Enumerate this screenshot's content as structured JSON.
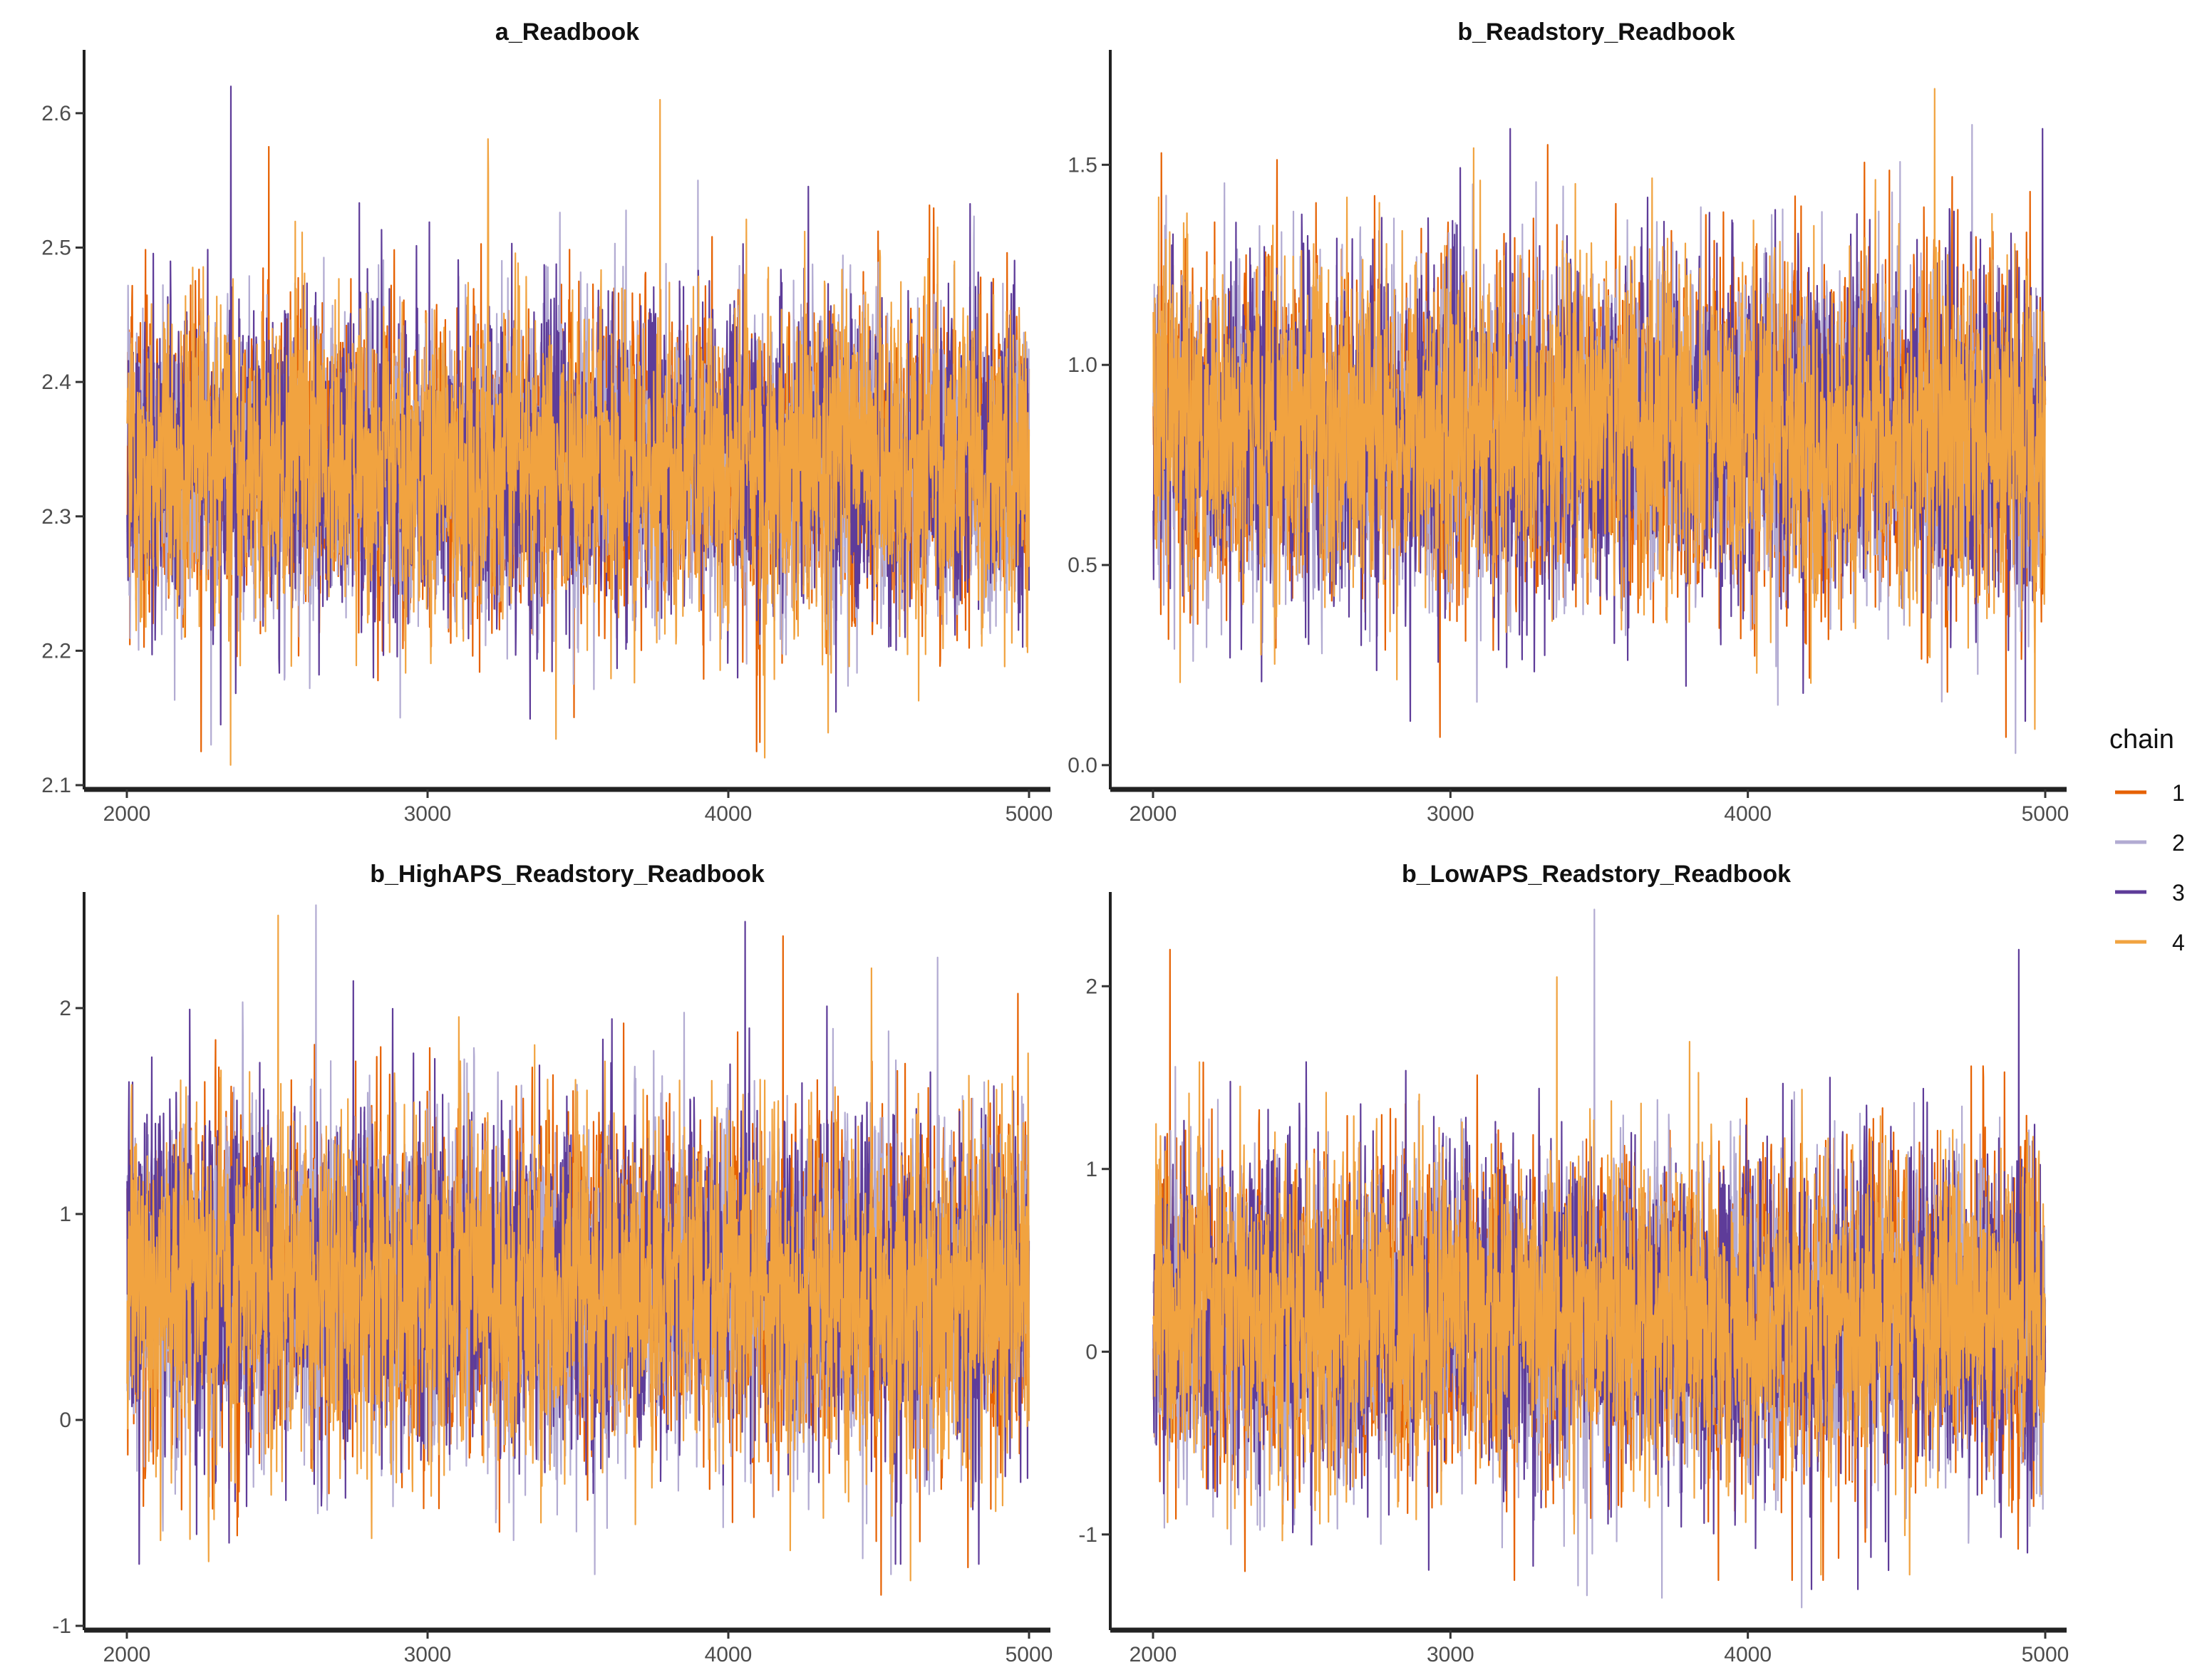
{
  "chart_data": [
    {
      "type": "line",
      "title": "a_Readbook",
      "xlabel": "",
      "ylabel": "",
      "xlim": [
        2000,
        5000
      ],
      "ylim": [
        2.1,
        2.645
      ],
      "x_ticks": [
        2000,
        3000,
        4000,
        5000
      ],
      "y_ticks": [
        2.1,
        2.2,
        2.3,
        2.4,
        2.5,
        2.6
      ],
      "y_tick_labels": [
        "2.1",
        "2.2",
        "2.3",
        "2.4",
        "2.5",
        "2.6"
      ],
      "series": [
        {
          "name": "1",
          "mean": 2.34,
          "sd": 0.055,
          "min": 2.125,
          "max": 2.575
        },
        {
          "name": "2",
          "mean": 2.34,
          "sd": 0.055,
          "min": 2.13,
          "max": 2.55
        },
        {
          "name": "3",
          "mean": 2.34,
          "sd": 0.055,
          "min": 2.145,
          "max": 2.62
        },
        {
          "name": "4",
          "mean": 2.34,
          "sd": 0.055,
          "min": 2.115,
          "max": 2.61
        }
      ],
      "iterations": [
        2001,
        5000
      ]
    },
    {
      "type": "line",
      "title": "b_Readstory_Readbook",
      "xlabel": "",
      "ylabel": "",
      "xlim": [
        2000,
        5000
      ],
      "ylim": [
        -0.05,
        1.78
      ],
      "x_ticks": [
        2000,
        3000,
        4000,
        5000
      ],
      "y_ticks": [
        0.0,
        0.5,
        1.0,
        1.5
      ],
      "y_tick_labels": [
        "0.0",
        "0.5",
        "1.0",
        "1.5"
      ],
      "series": [
        {
          "name": "1",
          "mean": 0.83,
          "sd": 0.2,
          "min": 0.07,
          "max": 1.55
        },
        {
          "name": "2",
          "mean": 0.83,
          "sd": 0.2,
          "min": 0.03,
          "max": 1.6
        },
        {
          "name": "3",
          "mean": 0.83,
          "sd": 0.2,
          "min": 0.11,
          "max": 1.59
        },
        {
          "name": "4",
          "mean": 0.83,
          "sd": 0.2,
          "min": 0.09,
          "max": 1.69
        }
      ],
      "iterations": [
        2001,
        5000
      ]
    },
    {
      "type": "line",
      "title": "b_HighAPS_Readstory_Readbook",
      "xlabel": "",
      "ylabel": "",
      "xlim": [
        2000,
        5000
      ],
      "ylim": [
        -1.0,
        2.55
      ],
      "x_ticks": [
        2000,
        3000,
        4000,
        5000
      ],
      "y_ticks": [
        -1,
        0,
        1,
        2
      ],
      "y_tick_labels": [
        "-1",
        "0",
        "1",
        "2"
      ],
      "series": [
        {
          "name": "1",
          "mean": 0.65,
          "sd": 0.4,
          "min": -0.85,
          "max": 2.35
        },
        {
          "name": "2",
          "mean": 0.65,
          "sd": 0.4,
          "min": -0.75,
          "max": 2.5
        },
        {
          "name": "3",
          "mean": 0.65,
          "sd": 0.4,
          "min": -0.7,
          "max": 2.42
        },
        {
          "name": "4",
          "mean": 0.65,
          "sd": 0.4,
          "min": -0.78,
          "max": 2.45
        }
      ],
      "iterations": [
        2001,
        5000
      ]
    },
    {
      "type": "line",
      "title": "b_LowAPS_Readstory_Readbook",
      "xlabel": "",
      "ylabel": "",
      "xlim": [
        2000,
        5000
      ],
      "ylim": [
        -1.5,
        2.5
      ],
      "x_ticks": [
        2000,
        3000,
        4000,
        5000
      ],
      "y_ticks": [
        -1,
        0,
        1,
        2
      ],
      "y_tick_labels": [
        "-1",
        "0",
        "1",
        "2"
      ],
      "series": [
        {
          "name": "1",
          "mean": 0.2,
          "sd": 0.42,
          "min": -1.25,
          "max": 2.2
        },
        {
          "name": "2",
          "mean": 0.2,
          "sd": 0.42,
          "min": -1.4,
          "max": 2.42
        },
        {
          "name": "3",
          "mean": 0.2,
          "sd": 0.42,
          "min": -1.3,
          "max": 2.2
        },
        {
          "name": "4",
          "mean": 0.2,
          "sd": 0.42,
          "min": -1.22,
          "max": 2.05
        }
      ],
      "iterations": [
        2001,
        5000
      ]
    }
  ],
  "legend": {
    "title": "chain",
    "items": [
      {
        "label": "1",
        "color": "#e66101"
      },
      {
        "label": "2",
        "color": "#b2abd2"
      },
      {
        "label": "3",
        "color": "#5e3c99"
      },
      {
        "label": "4",
        "color": "#f1a340"
      }
    ]
  },
  "colors": {
    "chain_1": "#e66101",
    "chain_2": "#b2abd2",
    "chain_3": "#5e3c99",
    "chain_4": "#f1a340",
    "axis": "#222222",
    "tick_text": "#4d4d4d"
  }
}
